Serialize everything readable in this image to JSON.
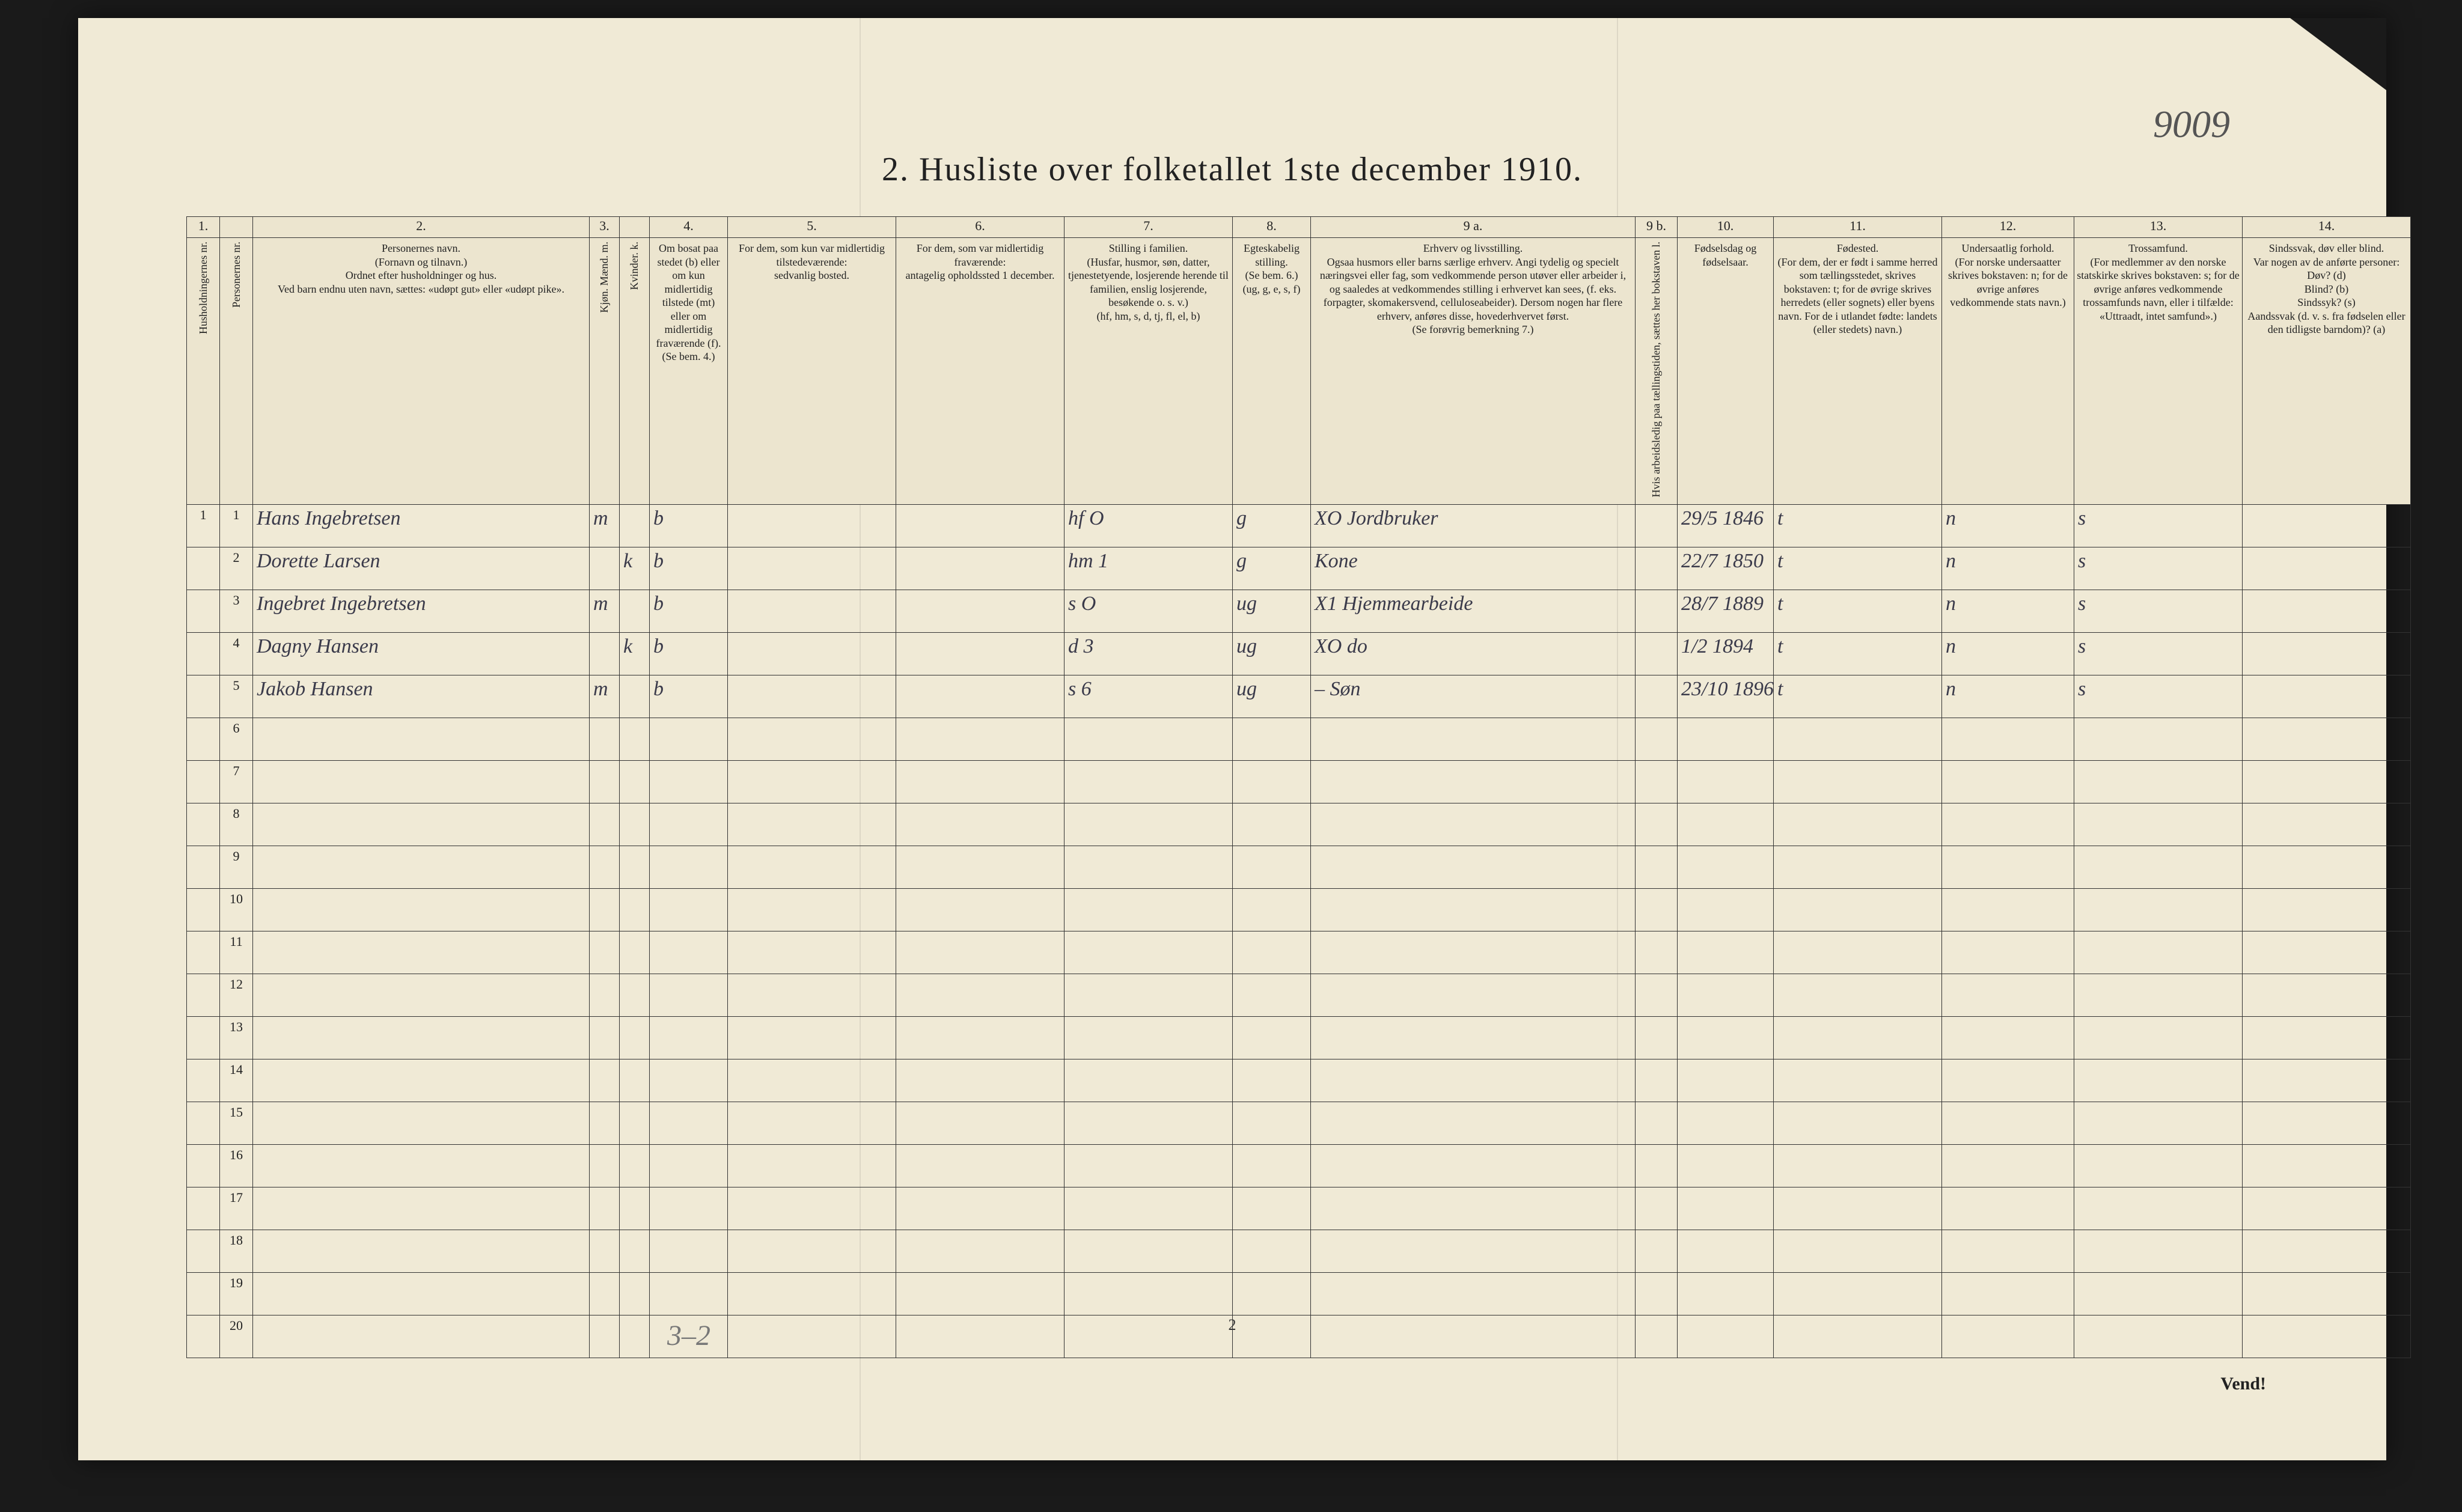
{
  "title": "2.  Husliste over folketallet 1ste december 1910.",
  "handwritten_annotation": "9009",
  "page_number": "2",
  "vend_label": "Vend!",
  "footnote": "3–2",
  "columns": {
    "numbers": [
      "1.",
      "",
      "2.",
      "3.",
      "",
      "4.",
      "5.",
      "6.",
      "7.",
      "8.",
      "9 a.",
      "9 b.",
      "10.",
      "11.",
      "12.",
      "13.",
      "14."
    ],
    "headers": [
      "Husholdningernes nr.",
      "Personernes nr.",
      "Personernes navn.\n(Fornavn og tilnavn.)\nOrdnet efter husholdninger og hus.\nVed barn endnu uten navn, sættes: «udøpt gut» eller «udøpt pike».",
      "Kjøn.\nMænd. m.",
      "Kvinder. k.",
      "Om bosat paa stedet (b) eller om kun midlertidig tilstede (mt) eller om midlertidig fraværende (f).\n(Se bem. 4.)",
      "For dem, som kun var midlertidig tilstedeværende:\nsedvanlig bosted.",
      "For dem, som var midlertidig fraværende:\nantagelig opholdssted 1 december.",
      "Stilling i familien.\n(Husfar, husmor, søn, datter, tjenestetyende, losjerende herende til familien, enslig losjerende, besøkende o. s. v.)\n(hf, hm, s, d, tj, fl, el, b)",
      "Egteskabelig stilling.\n(Se bem. 6.)\n(ug, g, e, s, f)",
      "Erhverv og livsstilling.\nOgsaa husmors eller barns særlige erhverv. Angi tydelig og specielt næringsvei eller fag, som vedkommende person utøver eller arbeider i, og saaledes at vedkommendes stilling i erhvervet kan sees, (f. eks. forpagter, skomakersvend, celluloseabeider). Dersom nogen har flere erhverv, anføres disse, hovederhvervet først.\n(Se forøvrig bemerkning 7.)",
      "Hvis arbeidsledig paa tællingstiden, sættes her bokstaven l.",
      "Fødselsdag og fødselsaar.",
      "Fødested.\n(For dem, der er født i samme herred som tællingsstedet, skrives bokstaven: t; for de øvrige skrives herredets (eller sognets) eller byens navn. For de i utlandet fødte: landets (eller stedets) navn.)",
      "Undersaatlig forhold.\n(For norske undersaatter skrives bokstaven: n; for de øvrige anføres vedkommende stats navn.)",
      "Trossamfund.\n(For medlemmer av den norske statskirke skrives bokstaven: s; for de øvrige anføres vedkommende trossamfunds navn, eller i tilfælde: «Uttraadt, intet samfund».)",
      "Sindssvak, døv eller blind.\nVar nogen av de anførte personer:\nDøv? (d)\nBlind? (b)\nSindssyk? (s)\nAandssvak (d. v. s. fra fødselen eller den tidligste barndom)? (a)"
    ],
    "widths": [
      55,
      55,
      560,
      50,
      50,
      130,
      280,
      280,
      280,
      130,
      540,
      70,
      160,
      280,
      220,
      280,
      280
    ]
  },
  "rows": [
    {
      "h": "1",
      "p": "1",
      "name": "Hans Ingebretsen",
      "m": "m",
      "k": "",
      "b": "b",
      "c5": "",
      "c6": "",
      "c7": "hf   O",
      "c8": "g",
      "c9": "XO  Jordbruker",
      "c9b": "",
      "c10": "29/5 1846",
      "c11": "t",
      "c12": "n",
      "c13": "s",
      "c14": ""
    },
    {
      "h": "",
      "p": "2",
      "name": "Dorette Larsen",
      "m": "",
      "k": "k",
      "b": "b",
      "c5": "",
      "c6": "",
      "c7": "hm   1",
      "c8": "g",
      "c9": "Kone",
      "c9b": "",
      "c10": "22/7 1850",
      "c11": "t",
      "c12": "n",
      "c13": "s",
      "c14": ""
    },
    {
      "h": "",
      "p": "3",
      "name": "Ingebret Ingebretsen",
      "m": "m",
      "k": "",
      "b": "b",
      "c5": "",
      "c6": "",
      "c7": "s   O",
      "c8": "ug",
      "c9": "X1  Hjemmearbeide",
      "c9b": "",
      "c10": "28/7 1889",
      "c11": "t",
      "c12": "n",
      "c13": "s",
      "c14": ""
    },
    {
      "h": "",
      "p": "4",
      "name": "Dagny Hansen",
      "m": "",
      "k": "k",
      "b": "b",
      "c5": "",
      "c6": "",
      "c7": "d   3",
      "c8": "ug",
      "c9": "XO   do",
      "c9b": "",
      "c10": "1/2 1894",
      "c11": "t",
      "c12": "n",
      "c13": "s",
      "c14": ""
    },
    {
      "h": "",
      "p": "5",
      "name": "Jakob Hansen",
      "m": "m",
      "k": "",
      "b": "b",
      "c5": "",
      "c6": "",
      "c7": "s   6",
      "c8": "ug",
      "c9": "–   Søn",
      "c9b": "",
      "c10": "23/10 1896",
      "c11": "t",
      "c12": "n",
      "c13": "s",
      "c14": ""
    }
  ],
  "empty_rows": [
    "6",
    "7",
    "8",
    "9",
    "10",
    "11",
    "12",
    "13",
    "14",
    "15",
    "16",
    "17",
    "18",
    "19",
    "20"
  ]
}
